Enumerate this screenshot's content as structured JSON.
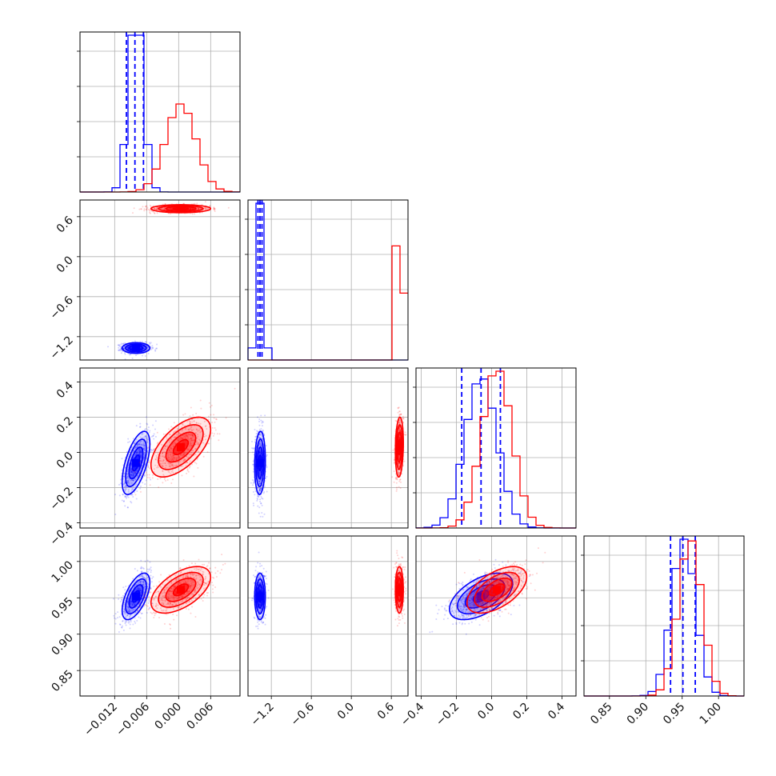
{
  "chart_data": {
    "type": "corner",
    "title": "",
    "grid": true,
    "colors": {
      "posterior_a": "#0000ff",
      "posterior_b": "#ff0000",
      "grid": "#b0b0b0"
    },
    "parameters": [
      {
        "index": 0,
        "range": [
          -0.0185,
          0.0115
        ],
        "ticks": [
          -0.012,
          -0.006,
          0.0,
          0.006
        ],
        "tick_labels": [
          "−0.012",
          "−0.006",
          "0.000",
          "0.006"
        ]
      },
      {
        "index": 1,
        "range": [
          -1.55,
          0.85
        ],
        "ticks": [
          -1.2,
          -0.6,
          0.0,
          0.6
        ],
        "tick_labels": [
          "−1.2",
          "−0.6",
          "0.0",
          "0.6"
        ]
      },
      {
        "index": 2,
        "range": [
          -0.43,
          0.48
        ],
        "ticks": [
          -0.4,
          -0.2,
          0.0,
          0.2,
          0.4
        ],
        "tick_labels": [
          "−0.4",
          "−0.2",
          "0.0",
          "0.2",
          "0.4"
        ]
      },
      {
        "index": 3,
        "range": [
          0.815,
          1.035
        ],
        "ticks": [
          0.85,
          0.9,
          0.95,
          1.0
        ],
        "tick_labels": [
          "0.85",
          "0.90",
          "0.95",
          "1.00"
        ]
      }
    ],
    "series": [
      {
        "color": "#0000ff",
        "means": [
          -0.008,
          -1.37,
          -0.06,
          0.952
        ],
        "sigmas": [
          0.0013,
          0.04,
          0.09,
          0.016
        ],
        "correlations": {
          "0_2": 0.6,
          "0_3": 0.6,
          "1_2": 0.1,
          "1_3": 0.0,
          "2_3": 0.55
        },
        "quantile_lines": [
          [
            -0.0098,
            -0.0082,
            -0.0066
          ],
          [
            -1.4,
            -1.37,
            -1.34
          ],
          [
            -0.17,
            -0.06,
            0.05
          ],
          [
            0.934,
            0.951,
            0.968
          ]
        ]
      },
      {
        "color": "#ff0000",
        "means": [
          0.0004,
          0.72,
          0.03,
          0.961
        ],
        "sigmas": [
          0.0028,
          0.03,
          0.085,
          0.016
        ],
        "correlations": {
          "0_2": 0.6,
          "0_3": 0.55,
          "1_2": 0.15,
          "1_3": 0.0,
          "2_3": 0.55
        },
        "quantile_lines": []
      }
    ]
  }
}
